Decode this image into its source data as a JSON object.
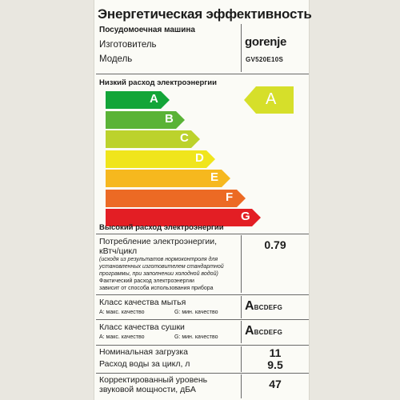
{
  "title": "Энергетическая эффективность",
  "appliance": "Посудомоечная машина",
  "manufacturer_label": "Изготовитель",
  "model_label": "Модель",
  "brand": "gorenje",
  "model": "GV520E10S",
  "scale": {
    "low_label": "Низкий расход электроэнергии",
    "high_label": "Высокий расход электроэнергии",
    "classes": [
      {
        "letter": "A",
        "color": "#13a538"
      },
      {
        "letter": "B",
        "color": "#5ab336"
      },
      {
        "letter": "C",
        "color": "#bcd22c"
      },
      {
        "letter": "D",
        "color": "#f0e51c"
      },
      {
        "letter": "E",
        "color": "#f6b81e"
      },
      {
        "letter": "F",
        "color": "#ec6a24"
      },
      {
        "letter": "G",
        "color": "#e31e24"
      }
    ]
  },
  "rating": {
    "letter": "A",
    "color": "#d6df2a"
  },
  "consumption": {
    "label_line1": "Потребление электроэнергии,",
    "label_line2": "кВтч/цикл",
    "note1": "(исходя из результатов нормоконтроля для",
    "note2": "установленных изготовителем стандартной",
    "note3": "программы, при заполнении холодной водой)",
    "note4": "Фактический расход электроэнергии",
    "note5": "зависит от способа использования прибора",
    "value": "0.79"
  },
  "washing": {
    "label": "Класс качества мытья",
    "min_label": "А: макс. качество",
    "max_label": "G: мин. качество",
    "class_big": "A",
    "class_rest": "BCDEFG"
  },
  "drying": {
    "label": "Класс качества сушки",
    "min_label": "А: макс. качество",
    "max_label": "G: мин. качество",
    "class_big": "A",
    "class_rest": "BCDEFG"
  },
  "capacity": {
    "label": "Номинальная загрузка",
    "value": "11"
  },
  "water": {
    "label": "Расход воды за цикл, л",
    "value": "9.5"
  },
  "noise": {
    "label_line1": "Корректированный уровень",
    "label_line2": "звуковой мощности, дБА",
    "value": "47"
  }
}
